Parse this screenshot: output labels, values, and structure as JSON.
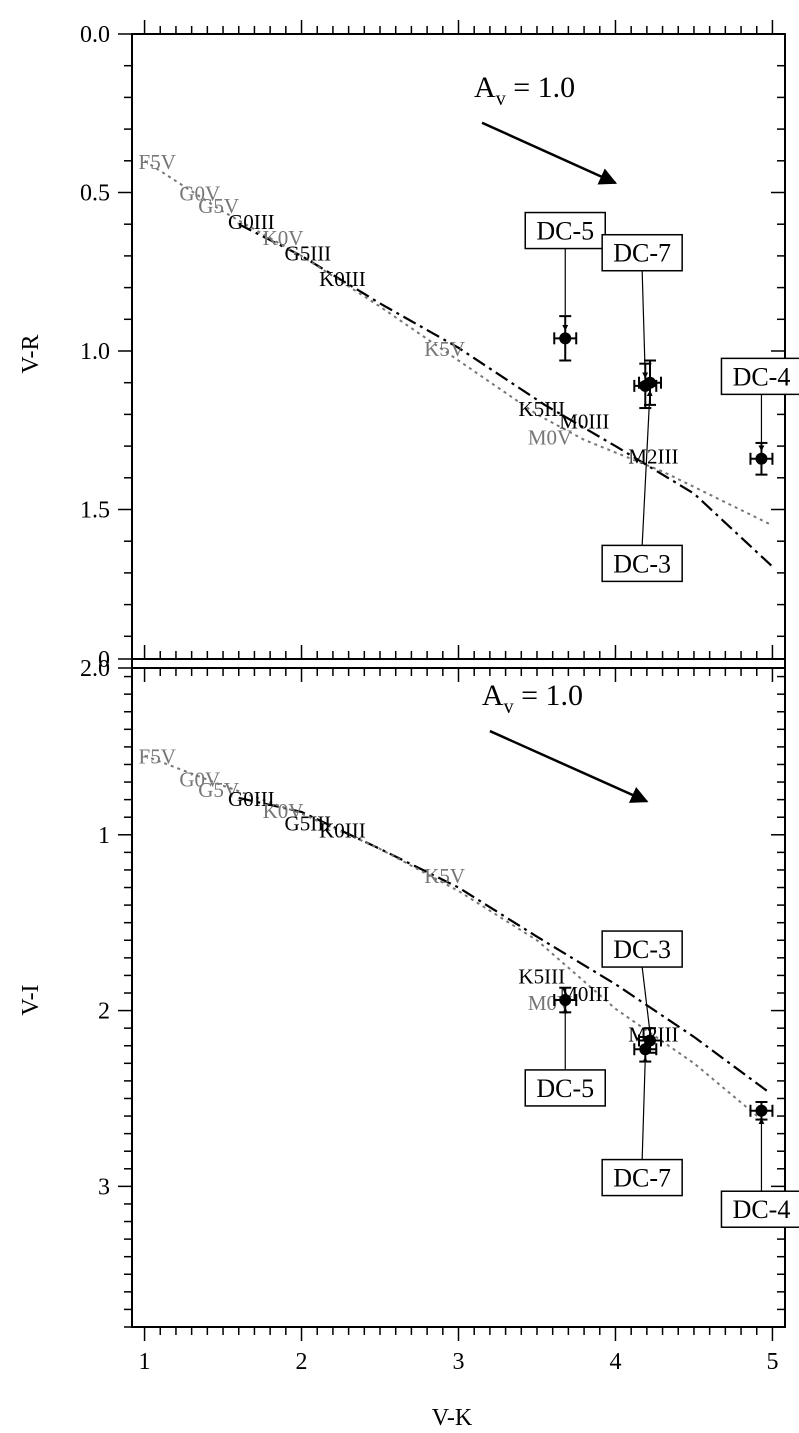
{
  "chart_data": [
    {
      "type": "scatter",
      "panel": "top",
      "xlabel": "",
      "ylabel": "V-R",
      "xlim": [
        0.92,
        5.08
      ],
      "ylim": [
        0.0,
        2.0
      ],
      "y_inverted": true,
      "y_ticks": [
        "0.0",
        "0.5",
        "1.0",
        "1.5",
        "2.0"
      ],
      "y_tick_values": [
        0.0,
        0.5,
        1.0,
        1.5,
        2.0
      ],
      "reddening_vector": {
        "label": "A",
        "label_sub": "v",
        "label_suffix": " = 1.0",
        "from": [
          3.15,
          0.28
        ],
        "to": [
          4.0,
          0.47
        ]
      },
      "series": [
        {
          "style": "dash-dot",
          "color": "#000000",
          "points": [
            [
              1.6,
              0.6
            ],
            [
              2.0,
              0.7
            ],
            [
              2.5,
              0.85
            ],
            [
              3.0,
              0.99
            ],
            [
              3.55,
              1.17
            ],
            [
              4.0,
              1.3
            ],
            [
              4.5,
              1.45
            ],
            [
              5.0,
              1.68
            ]
          ]
        },
        {
          "style": "dotted",
          "color": "#777777",
          "points": [
            [
              1.0,
              0.4
            ],
            [
              1.5,
              0.56
            ],
            [
              2.0,
              0.7
            ],
            [
              2.5,
              0.86
            ],
            [
              3.0,
              1.03
            ],
            [
              3.5,
              1.2
            ],
            [
              3.8,
              1.28
            ],
            [
              4.3,
              1.38
            ],
            [
              5.0,
              1.55
            ]
          ]
        }
      ],
      "spectral_labels": [
        {
          "text": "F5V",
          "x": 1.0,
          "y": 0.4,
          "color": "#777777"
        },
        {
          "text": "G0V",
          "x": 1.26,
          "y": 0.5,
          "color": "#777777"
        },
        {
          "text": "G5V",
          "x": 1.38,
          "y": 0.54,
          "color": "#777777"
        },
        {
          "text": "G0III",
          "x": 1.57,
          "y": 0.59,
          "color": "#000000"
        },
        {
          "text": "K0V",
          "x": 1.79,
          "y": 0.64,
          "color": "#777777"
        },
        {
          "text": "G5III",
          "x": 1.93,
          "y": 0.69,
          "color": "#000000"
        },
        {
          "text": "K0III",
          "x": 2.15,
          "y": 0.77,
          "color": "#000000"
        },
        {
          "text": "K5V",
          "x": 2.82,
          "y": 0.99,
          "color": "#777777"
        },
        {
          "text": "K5III",
          "x": 3.42,
          "y": 1.18,
          "color": "#000000"
        },
        {
          "text": "M0III",
          "x": 3.68,
          "y": 1.22,
          "color": "#000000"
        },
        {
          "text": "M0V",
          "x": 3.48,
          "y": 1.27,
          "color": "#777777"
        },
        {
          "text": "M2III",
          "x": 4.12,
          "y": 1.33,
          "color": "#000000"
        }
      ],
      "points": [
        {
          "name": "DC-5",
          "x": 3.68,
          "y": 0.96,
          "xerr": 0.07,
          "yerr": 0.07,
          "box": [
            3.68,
            0.62
          ]
        },
        {
          "name": "DC-7",
          "x": 4.19,
          "y": 1.11,
          "xerr": 0.07,
          "yerr": 0.07,
          "box": [
            4.17,
            0.69
          ]
        },
        {
          "name": "DC-3",
          "x": 4.22,
          "y": 1.1,
          "xerr": 0.07,
          "yerr": 0.07,
          "box": [
            4.17,
            1.67
          ]
        },
        {
          "name": "DC-4",
          "x": 4.93,
          "y": 1.34,
          "xerr": 0.07,
          "yerr": 0.05,
          "box": [
            4.93,
            1.08
          ]
        }
      ]
    },
    {
      "type": "scatter",
      "panel": "bottom",
      "xlabel": "V-K",
      "ylabel": "V-I",
      "xlim": [
        0.92,
        5.08
      ],
      "ylim": [
        0.0,
        3.8
      ],
      "y_inverted": true,
      "y_ticks": [
        "0",
        "1",
        "2",
        "3"
      ],
      "y_tick_values": [
        0,
        1,
        2,
        3
      ],
      "x_ticks": [
        "1",
        "2",
        "3",
        "4",
        "5"
      ],
      "x_tick_values": [
        1,
        2,
        3,
        4,
        5
      ],
      "reddening_vector": {
        "label": "A",
        "label_sub": "v",
        "label_suffix": " = 1.0",
        "from": [
          3.2,
          0.41
        ],
        "to": [
          4.2,
          0.81
        ]
      },
      "series": [
        {
          "style": "dash-dot",
          "color": "#000000",
          "points": [
            [
              1.6,
              0.79
            ],
            [
              2.0,
              0.87
            ],
            [
              2.5,
              1.08
            ],
            [
              3.0,
              1.3
            ],
            [
              3.5,
              1.58
            ],
            [
              4.0,
              1.85
            ],
            [
              4.5,
              2.15
            ],
            [
              4.97,
              2.46
            ]
          ]
        },
        {
          "style": "dotted",
          "color": "#777777",
          "points": [
            [
              1.0,
              0.55
            ],
            [
              1.5,
              0.72
            ],
            [
              2.0,
              0.88
            ],
            [
              2.5,
              1.08
            ],
            [
              3.0,
              1.32
            ],
            [
              3.5,
              1.6
            ],
            [
              4.0,
              1.99
            ],
            [
              4.5,
              2.3
            ],
            [
              4.93,
              2.62
            ]
          ]
        }
      ],
      "spectral_labels": [
        {
          "text": "F5V",
          "x": 1.0,
          "y": 0.55,
          "color": "#777777"
        },
        {
          "text": "G0V",
          "x": 1.26,
          "y": 0.68,
          "color": "#777777"
        },
        {
          "text": "G5V",
          "x": 1.38,
          "y": 0.74,
          "color": "#777777"
        },
        {
          "text": "G0III",
          "x": 1.57,
          "y": 0.79,
          "color": "#000000"
        },
        {
          "text": "K0V",
          "x": 1.79,
          "y": 0.86,
          "color": "#777777"
        },
        {
          "text": "G5III",
          "x": 1.93,
          "y": 0.93,
          "color": "#000000"
        },
        {
          "text": "K0III",
          "x": 2.15,
          "y": 0.97,
          "color": "#000000"
        },
        {
          "text": "K5V",
          "x": 2.82,
          "y": 1.23,
          "color": "#777777"
        },
        {
          "text": "K5III",
          "x": 3.42,
          "y": 1.8,
          "color": "#000000"
        },
        {
          "text": "M0III",
          "x": 3.68,
          "y": 1.9,
          "color": "#000000"
        },
        {
          "text": "M0V",
          "x": 3.48,
          "y": 1.95,
          "color": "#777777"
        },
        {
          "text": "M2III",
          "x": 4.12,
          "y": 2.13,
          "color": "#000000"
        }
      ],
      "points": [
        {
          "name": "DC-5",
          "x": 3.68,
          "y": 1.94,
          "xerr": 0.07,
          "yerr": 0.07,
          "box": [
            3.68,
            2.44
          ]
        },
        {
          "name": "DC-3",
          "x": 4.22,
          "y": 2.17,
          "xerr": 0.07,
          "yerr": 0.07,
          "box": [
            4.17,
            1.65
          ]
        },
        {
          "name": "DC-7",
          "x": 4.19,
          "y": 2.22,
          "xerr": 0.07,
          "yerr": 0.07,
          "box": [
            4.17,
            2.95
          ]
        },
        {
          "name": "DC-4",
          "x": 4.93,
          "y": 2.57,
          "xerr": 0.07,
          "yerr": 0.05,
          "box": [
            4.93,
            3.13
          ]
        }
      ]
    }
  ]
}
